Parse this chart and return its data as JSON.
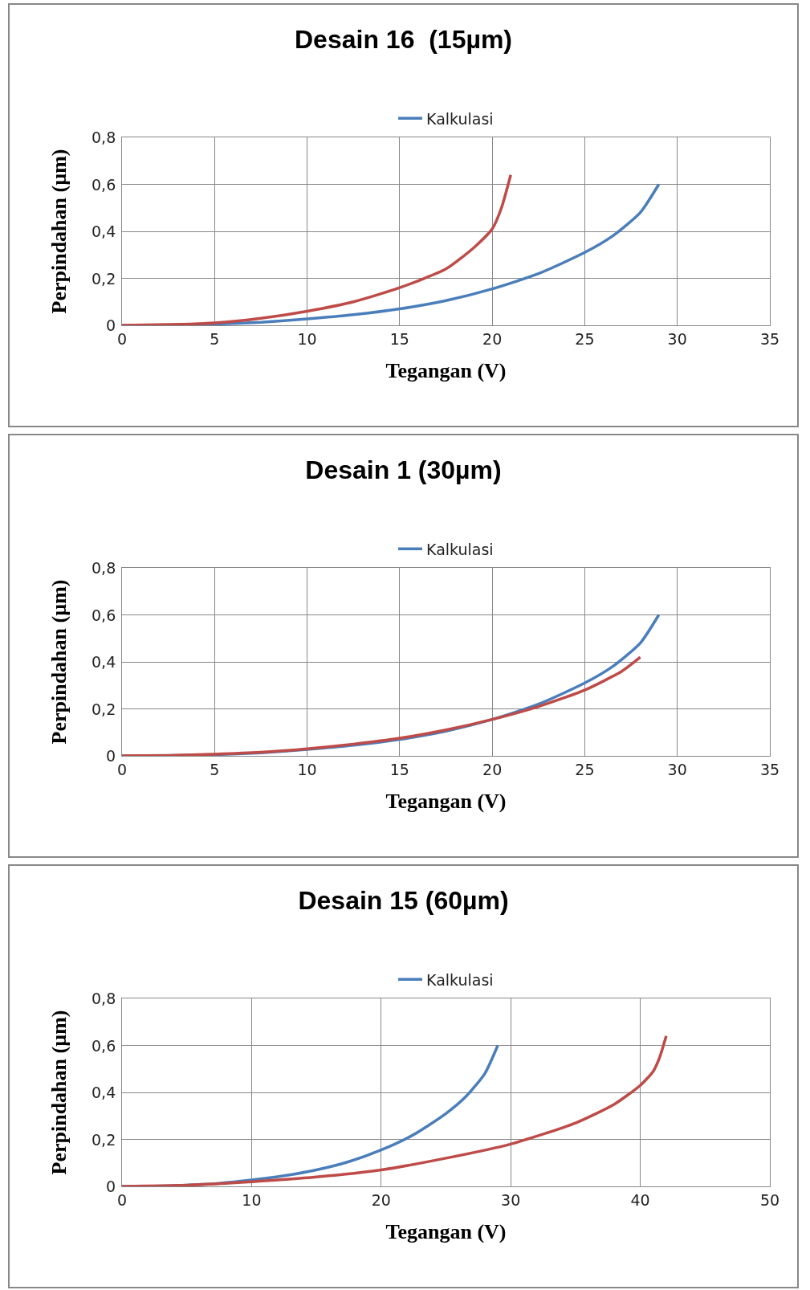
{
  "chart_data": [
    {
      "type": "line",
      "title": "Desain 16  (15µm)",
      "xlabel": "Tegangan (V)",
      "ylabel": "Perpindahan (µm)",
      "legend": "top",
      "grid": true,
      "marker": "none",
      "line_style": "solid",
      "xlim": [
        0,
        35
      ],
      "xticks": [
        0,
        5,
        10,
        15,
        20,
        25,
        30,
        35
      ],
      "ylim": [
        0,
        0.8
      ],
      "yticks": [
        {
          "value": 0,
          "label": "0"
        },
        {
          "value": 0.2,
          "label": "0,2"
        },
        {
          "value": 0.4,
          "label": "0,4"
        },
        {
          "value": 0.6,
          "label": "0,6"
        },
        {
          "value": 0.8,
          "label": "0,8"
        }
      ],
      "series": [
        {
          "name": "Kalkulasi",
          "color": "#4a7ebb",
          "x": [
            0,
            2.5,
            5,
            7.5,
            10,
            12.5,
            15,
            17.5,
            20,
            22.5,
            25,
            26.5,
            28,
            29
          ],
          "values": [
            0,
            0.001,
            0.005,
            0.013,
            0.027,
            0.045,
            0.07,
            0.105,
            0.155,
            0.22,
            0.31,
            0.38,
            0.48,
            0.6
          ]
        },
        {
          "color": "#be4b48",
          "x": [
            0,
            2.5,
            5,
            7.5,
            10,
            12.5,
            15,
            17.5,
            19,
            20,
            20.5,
            21
          ],
          "values": [
            0,
            0.003,
            0.01,
            0.03,
            0.06,
            0.1,
            0.16,
            0.24,
            0.33,
            0.41,
            0.5,
            0.64
          ]
        }
      ]
    },
    {
      "type": "line",
      "title": "Desain 1 (30µm)",
      "xlabel": "Tegangan (V)",
      "ylabel": "Perpindahan (µm)",
      "legend": "top",
      "grid": true,
      "marker": "none",
      "line_style": "solid",
      "xlim": [
        0,
        35
      ],
      "xticks": [
        0,
        5,
        10,
        15,
        20,
        25,
        30,
        35
      ],
      "ylim": [
        0,
        0.8
      ],
      "yticks": [
        {
          "value": 0,
          "label": "0"
        },
        {
          "value": 0.2,
          "label": "0,2"
        },
        {
          "value": 0.4,
          "label": "0,4"
        },
        {
          "value": 0.6,
          "label": "0,6"
        },
        {
          "value": 0.8,
          "label": "0,8"
        }
      ],
      "series": [
        {
          "name": "Kalkulasi",
          "color": "#4a7ebb",
          "x": [
            0,
            2.5,
            5,
            7.5,
            10,
            12.5,
            15,
            17.5,
            20,
            22.5,
            25,
            26.5,
            28,
            29
          ],
          "values": [
            0,
            0.001,
            0.005,
            0.013,
            0.027,
            0.045,
            0.07,
            0.105,
            0.155,
            0.22,
            0.31,
            0.38,
            0.48,
            0.6
          ]
        },
        {
          "color": "#be4b48",
          "x": [
            0,
            2.5,
            5,
            7.5,
            10,
            12.5,
            15,
            17.5,
            20,
            22.5,
            25,
            27,
            28
          ],
          "values": [
            0,
            0.002,
            0.007,
            0.015,
            0.03,
            0.05,
            0.075,
            0.11,
            0.155,
            0.21,
            0.28,
            0.36,
            0.42
          ]
        }
      ]
    },
    {
      "type": "line",
      "title": "Desain 15 (60µm)",
      "xlabel": "Tegangan (V)",
      "ylabel": "Perpindahan (µm)",
      "legend": "top",
      "grid": true,
      "marker": "none",
      "line_style": "solid",
      "xlim": [
        0,
        50
      ],
      "xticks": [
        0,
        10,
        20,
        30,
        40,
        50
      ],
      "ylim": [
        0,
        0.8
      ],
      "yticks": [
        {
          "value": 0,
          "label": "0"
        },
        {
          "value": 0.2,
          "label": "0,2"
        },
        {
          "value": 0.4,
          "label": "0,4"
        },
        {
          "value": 0.6,
          "label": "0,6"
        },
        {
          "value": 0.8,
          "label": "0,8"
        }
      ],
      "series": [
        {
          "name": "Kalkulasi",
          "color": "#4a7ebb",
          "x": [
            0,
            2.5,
            5,
            7.5,
            10,
            12.5,
            15,
            17.5,
            20,
            22.5,
            25,
            26.5,
            28,
            29
          ],
          "values": [
            0,
            0.001,
            0.005,
            0.013,
            0.027,
            0.045,
            0.07,
            0.105,
            0.155,
            0.22,
            0.31,
            0.38,
            0.48,
            0.6
          ]
        },
        {
          "color": "#be4b48",
          "x": [
            0,
            5,
            10,
            15,
            20,
            25,
            30,
            35,
            38,
            40,
            41,
            41.5,
            42
          ],
          "values": [
            0,
            0.005,
            0.02,
            0.04,
            0.07,
            0.12,
            0.18,
            0.27,
            0.35,
            0.43,
            0.49,
            0.55,
            0.64
          ]
        }
      ]
    }
  ]
}
